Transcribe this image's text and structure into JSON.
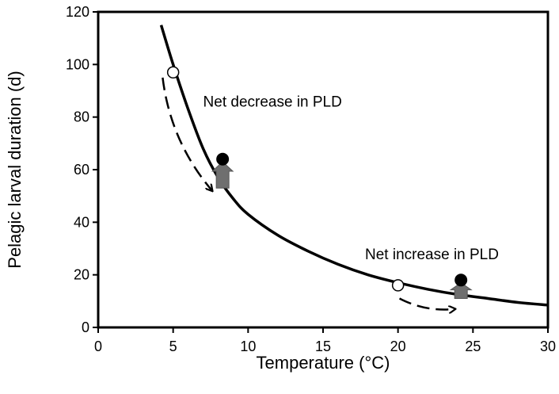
{
  "chart_data": {
    "type": "line",
    "xlabel": "Temperature (°C)",
    "ylabel": "Pelagic larval duration (d)",
    "xlim": [
      0,
      30
    ],
    "ylim": [
      0,
      120
    ],
    "xticks": [
      0,
      5,
      10,
      15,
      20,
      25,
      30
    ],
    "yticks": [
      0,
      20,
      40,
      60,
      80,
      100,
      120
    ],
    "grid": false,
    "curve": {
      "x": [
        4.2,
        5,
        6,
        7,
        8,
        9,
        10,
        12,
        14,
        16,
        18,
        20,
        22,
        24,
        26,
        28,
        30
      ],
      "y": [
        115,
        100,
        83,
        68,
        57,
        49,
        43,
        35,
        29,
        24,
        20,
        17,
        14.5,
        12.5,
        11,
        9.5,
        8.5
      ]
    },
    "open_points": [
      {
        "x": 5,
        "y": 97
      },
      {
        "x": 20,
        "y": 16
      }
    ],
    "closed_points": [
      {
        "x": 8.3,
        "y": 64
      },
      {
        "x": 24.2,
        "y": 18
      }
    ],
    "shift_arrows": [
      {
        "from": [
          4.3,
          95
        ],
        "to": [
          7.6,
          52
        ]
      },
      {
        "from": [
          20.1,
          11
        ],
        "to": [
          23.8,
          7
        ]
      }
    ],
    "up_arrows": [
      {
        "x": 8.3,
        "from_y": 53,
        "to_y": 63
      },
      {
        "x": 24.2,
        "from_y": 11,
        "to_y": 17
      }
    ],
    "annotations": [
      {
        "text": "Net decrease in PLD",
        "x": 7,
        "y": 84
      },
      {
        "text": "Net increase in PLD",
        "x": 17.8,
        "y": 26
      }
    ]
  }
}
